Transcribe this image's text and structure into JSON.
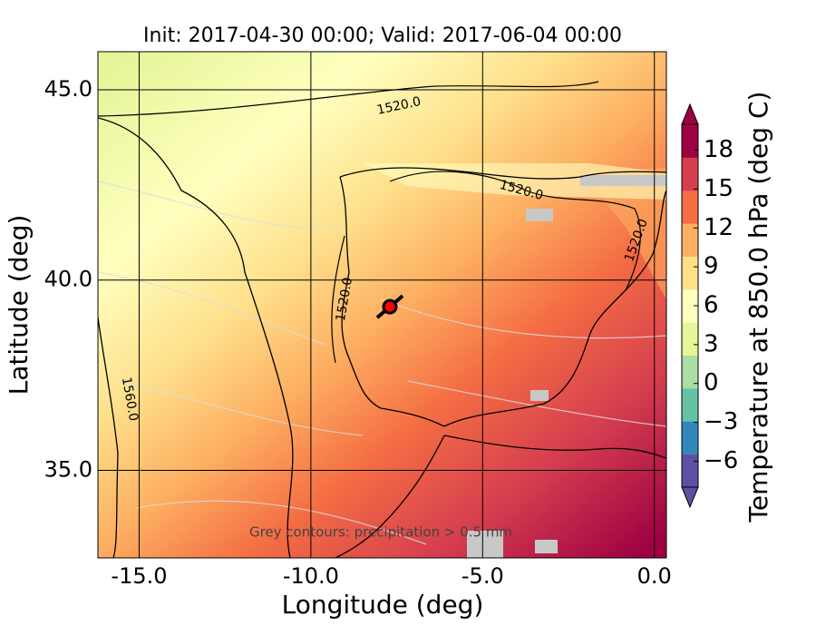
{
  "chart_data": {
    "type": "map",
    "title": "Init: 2017-04-30 00:00; Valid: 2017-06-04 00:00",
    "xlabel": "Longitude (deg)",
    "ylabel": "Latitude (deg)",
    "xlim": [
      -16.2,
      0.35
    ],
    "ylim": [
      32.7,
      46.0
    ],
    "xticks": [
      {
        "value": -15,
        "label": "-15.0"
      },
      {
        "value": -10,
        "label": "-10.0"
      },
      {
        "value": -5,
        "label": "-5.0"
      },
      {
        "value": 0,
        "label": "0.0"
      }
    ],
    "yticks": [
      {
        "value": 35,
        "label": "35.0"
      },
      {
        "value": 40,
        "label": "40.0"
      },
      {
        "value": 45,
        "label": "45.0"
      }
    ],
    "grid": true,
    "marker": {
      "lon": -7.7,
      "lat": 39.3,
      "color": "#ff0000"
    },
    "contour_labels": [
      "1520.0",
      "1520.0",
      "1520.0",
      "1520.0",
      "1560.0"
    ],
    "annotation": "Grey contours: precipitation > 0.5 mm",
    "colorbar": {
      "label": "Temperature at 850.0 hPa (deg C)",
      "lim": [
        -8,
        20
      ],
      "ticks": [
        {
          "value": -6,
          "label": "−6"
        },
        {
          "value": -3,
          "label": "−3"
        },
        0,
        3,
        6,
        9,
        12,
        15,
        18
      ],
      "colors": [
        "#5e4fa2",
        "#3288bd",
        "#66c2a5",
        "#abdda4",
        "#e6f598",
        "#ffffbf",
        "#fee08b",
        "#fdae61",
        "#f46d43",
        "#d53e4f",
        "#9e0142"
      ]
    }
  }
}
